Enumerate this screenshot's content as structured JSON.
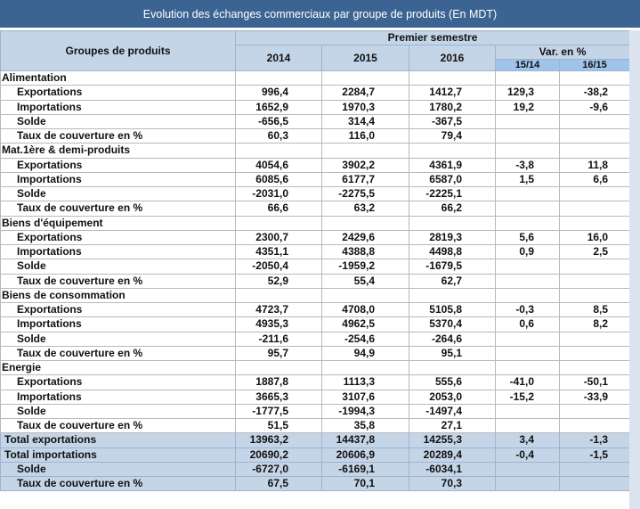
{
  "title": "Evolution des échanges commerciaux par groupe de produits  (En MDT)",
  "header": {
    "group_col": "Groupes de produits",
    "semester": "Premier semestre",
    "years": [
      "2014",
      "2015",
      "2016"
    ],
    "var_label": "Var. en %",
    "var_cols": [
      "15/14",
      "16/15"
    ]
  },
  "sections": [
    {
      "name": "Alimentation",
      "rows": [
        {
          "label": "Exportations",
          "v": [
            "996,4",
            "2284,7",
            "1412,7"
          ],
          "var": [
            "129,3",
            "-38,2"
          ]
        },
        {
          "label": "Importations",
          "v": [
            "1652,9",
            "1970,3",
            "1780,2"
          ],
          "var": [
            "19,2",
            "-9,6"
          ]
        },
        {
          "label": "Solde",
          "v": [
            "-656,5",
            "314,4",
            "-367,5"
          ],
          "var": [
            "",
            ""
          ]
        },
        {
          "label": "Taux de couverture en %",
          "v": [
            "60,3",
            "116,0",
            "79,4"
          ],
          "var": [
            "",
            ""
          ]
        }
      ]
    },
    {
      "name": "Mat.1ère & demi-produits",
      "rows": [
        {
          "label": "Exportations",
          "v": [
            "4054,6",
            "3902,2",
            "4361,9"
          ],
          "var": [
            "-3,8",
            "11,8"
          ]
        },
        {
          "label": "Importations",
          "v": [
            "6085,6",
            "6177,7",
            "6587,0"
          ],
          "var": [
            "1,5",
            "6,6"
          ]
        },
        {
          "label": "Solde",
          "v": [
            "-2031,0",
            "-2275,5",
            "-2225,1"
          ],
          "var": [
            "",
            ""
          ]
        },
        {
          "label": "Taux de couverture en %",
          "v": [
            "66,6",
            "63,2",
            "66,2"
          ],
          "var": [
            "",
            ""
          ]
        }
      ]
    },
    {
      "name": "Biens d'équipement",
      "rows": [
        {
          "label": "Exportations",
          "v": [
            "2300,7",
            "2429,6",
            "2819,3"
          ],
          "var": [
            "5,6",
            "16,0"
          ]
        },
        {
          "label": "Importations",
          "v": [
            "4351,1",
            "4388,8",
            "4498,8"
          ],
          "var": [
            "0,9",
            "2,5"
          ]
        },
        {
          "label": "Solde",
          "v": [
            "-2050,4",
            "-1959,2",
            "-1679,5"
          ],
          "var": [
            "",
            ""
          ]
        },
        {
          "label": "Taux de couverture en %",
          "v": [
            "52,9",
            "55,4",
            "62,7"
          ],
          "var": [
            "",
            ""
          ]
        }
      ]
    },
    {
      "name": "Biens de consommation",
      "rows": [
        {
          "label": "Exportations",
          "v": [
            "4723,7",
            "4708,0",
            "5105,8"
          ],
          "var": [
            "-0,3",
            "8,5"
          ]
        },
        {
          "label": "Importations",
          "v": [
            "4935,3",
            "4962,5",
            "5370,4"
          ],
          "var": [
            "0,6",
            "8,2"
          ]
        },
        {
          "label": "Solde",
          "v": [
            "-211,6",
            "-254,6",
            "-264,6"
          ],
          "var": [
            "",
            ""
          ]
        },
        {
          "label": "Taux de couverture en %",
          "v": [
            "95,7",
            "94,9",
            "95,1"
          ],
          "var": [
            "",
            ""
          ]
        }
      ]
    },
    {
      "name": "Energie",
      "rows": [
        {
          "label": "Exportations",
          "v": [
            "1887,8",
            "1113,3",
            "555,6"
          ],
          "var": [
            "-41,0",
            "-50,1"
          ]
        },
        {
          "label": "Importations",
          "v": [
            "3665,3",
            "3107,6",
            "2053,0"
          ],
          "var": [
            "-15,2",
            "-33,9"
          ]
        },
        {
          "label": "Solde",
          "v": [
            "-1777,5",
            "-1994,3",
            "-1497,4"
          ],
          "var": [
            "",
            ""
          ]
        },
        {
          "label": "Taux de couverture en %",
          "v": [
            "51,5",
            "35,8",
            "27,1"
          ],
          "var": [
            "",
            ""
          ]
        }
      ]
    }
  ],
  "totals": [
    {
      "label": "Total exportations",
      "indent": false,
      "v": [
        "13963,2",
        "14437,8",
        "14255,3"
      ],
      "var": [
        "3,4",
        "-1,3"
      ]
    },
    {
      "label": "Total importations",
      "indent": false,
      "v": [
        "20690,2",
        "20606,9",
        "20289,4"
      ],
      "var": [
        "-0,4",
        "-1,5"
      ]
    },
    {
      "label": "Solde",
      "indent": true,
      "v": [
        "-6727,0",
        "-6169,1",
        "-6034,1"
      ],
      "var": [
        "",
        ""
      ]
    },
    {
      "label": "Taux de couverture en %",
      "indent": true,
      "v": [
        "67,5",
        "70,1",
        "70,3"
      ],
      "var": [
        "",
        ""
      ]
    }
  ],
  "colors": {
    "title_bg": "#3c6493",
    "header_bg": "#c5d5e8",
    "subheader_bg": "#9fc3ea"
  }
}
